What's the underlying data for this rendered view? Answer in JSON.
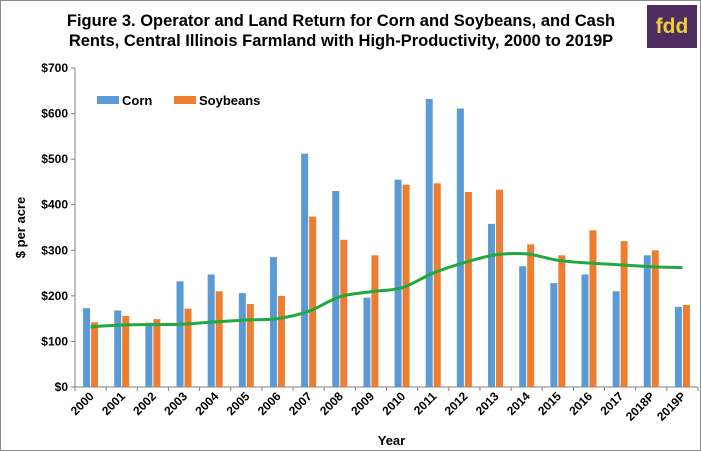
{
  "chart_data": {
    "type": "bar",
    "title": "Figure 3. Operator and Land Return for Corn and Soybeans, and Cash Rents, Central Illinois Farmland with High-Productivity, 2000 to 2019P",
    "title_line1": "Figure 3. Operator and Land Return for Corn and Soybeans, and Cash",
    "title_line2": "Rents, Central Illinois Farmland with High-Productivity, 2000 to 2019P",
    "xlabel": "Year",
    "ylabel": "$ per acre",
    "ylim": [
      0,
      700
    ],
    "yticks": [
      0,
      100,
      200,
      300,
      400,
      500,
      600,
      700
    ],
    "ytick_labels": [
      "$0",
      "$100",
      "$200",
      "$300",
      "$400",
      "$500",
      "$600",
      "$700"
    ],
    "categories": [
      "2000",
      "2001",
      "2002",
      "2003",
      "2004",
      "2005",
      "2006",
      "2007",
      "2008",
      "2009",
      "2010",
      "2011",
      "2012",
      "2013",
      "2014",
      "2015",
      "2016",
      "2017",
      "2018P",
      "2019P"
    ],
    "series": [
      {
        "name": "Corn",
        "kind": "bar",
        "color": "#5b9bd5",
        "values": [
          173,
          168,
          141,
          232,
          247,
          206,
          285,
          512,
          430,
          196,
          455,
          632,
          611,
          358,
          265,
          228,
          247,
          210,
          289,
          176
        ]
      },
      {
        "name": "Soybeans",
        "kind": "bar",
        "color": "#ed7d31",
        "values": [
          142,
          156,
          149,
          172,
          210,
          182,
          200,
          374,
          323,
          289,
          444,
          447,
          428,
          433,
          313,
          289,
          344,
          320,
          300,
          180
        ]
      },
      {
        "kind": "line",
        "color": "#22a83e",
        "values": [
          132,
          136,
          137,
          138,
          143,
          147,
          150,
          166,
          198,
          209,
          218,
          250,
          273,
          290,
          292,
          278,
          272,
          268,
          264,
          262
        ]
      }
    ],
    "legend_position": "top-left",
    "grid": false
  },
  "logo": {
    "text": "fdd",
    "background": "#4f2c5e",
    "color": "#f0ce3b"
  }
}
